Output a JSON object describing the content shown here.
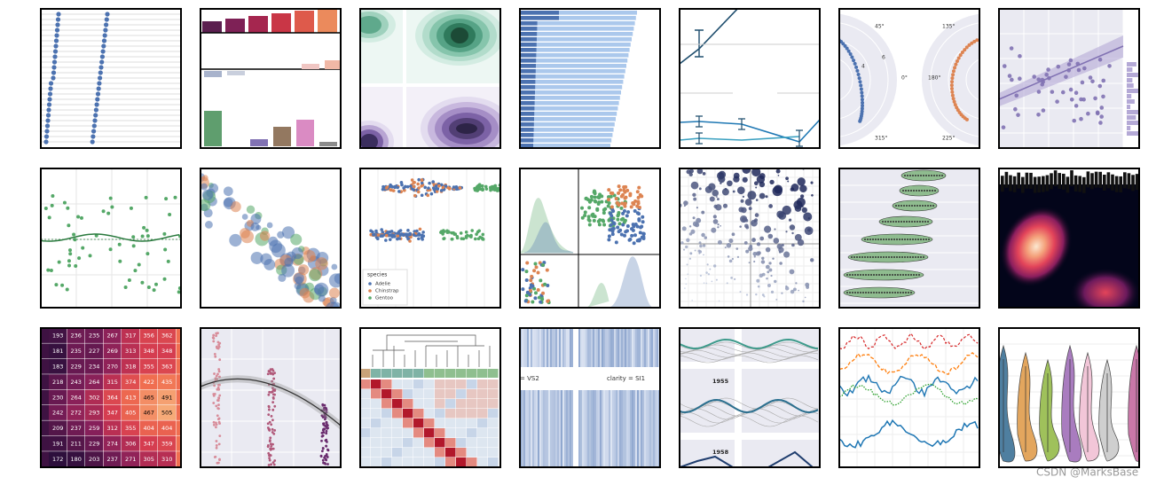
{
  "polar": {
    "labels": [
      "45°",
      "135°",
      "0°",
      "180°",
      "315°",
      "225°",
      "4",
      "6"
    ]
  },
  "swarm_legend": {
    "title": "species",
    "items": [
      "Adelie",
      "Chinstrap",
      "Gentoo"
    ]
  },
  "heatmap": {
    "rows": [
      [
        193,
        236,
        235,
        267,
        317,
        356,
        362
      ],
      [
        181,
        235,
        227,
        269,
        313,
        348,
        348
      ],
      [
        183,
        229,
        234,
        270,
        318,
        355,
        363
      ],
      [
        218,
        243,
        264,
        315,
        374,
        422,
        435
      ],
      [
        230,
        264,
        302,
        364,
        413,
        465,
        491
      ],
      [
        242,
        272,
        293,
        347,
        405,
        467,
        505
      ],
      [
        209,
        237,
        259,
        312,
        355,
        404,
        404
      ],
      [
        191,
        211,
        229,
        274,
        306,
        347,
        359
      ],
      [
        172,
        180,
        203,
        237,
        271,
        305,
        310
      ]
    ]
  },
  "facet_titles": [
    "= VS2",
    "clarity = SI1"
  ],
  "year_labels": [
    "1955",
    "1958"
  ],
  "watermark": "CSDN @MarksBase"
}
